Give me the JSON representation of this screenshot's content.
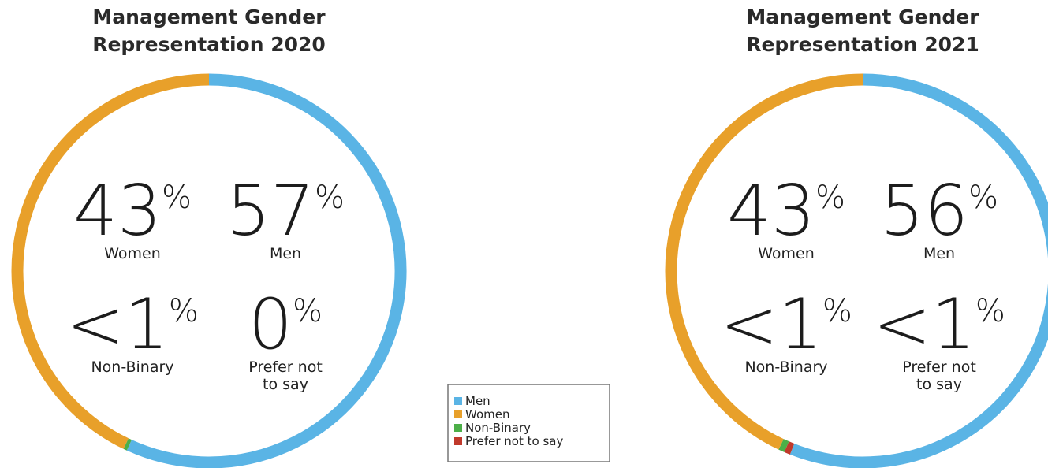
{
  "chart_data": [
    {
      "type": "donut",
      "title": "Management Gender Representation 2020",
      "categories": [
        "Men",
        "Women",
        "Non-Binary",
        "Prefer not to say"
      ],
      "values": [
        57,
        43,
        0.3,
        0
      ],
      "value_labels": [
        "57%",
        "43%",
        "<1%",
        "0%"
      ],
      "colors": [
        "#5ab4e5",
        "#e8a02a",
        "#4caf48",
        "#c0392b"
      ]
    },
    {
      "type": "donut",
      "title": "Management Gender Representation 2021",
      "categories": [
        "Men",
        "Women",
        "Non-Binary",
        "Prefer not to say"
      ],
      "values": [
        56,
        43,
        0.5,
        0.5
      ],
      "value_labels": [
        "56%",
        "43%",
        "<1%",
        "<1%"
      ],
      "colors": [
        "#5ab4e5",
        "#e8a02a",
        "#4caf48",
        "#c0392b"
      ]
    }
  ]
}
